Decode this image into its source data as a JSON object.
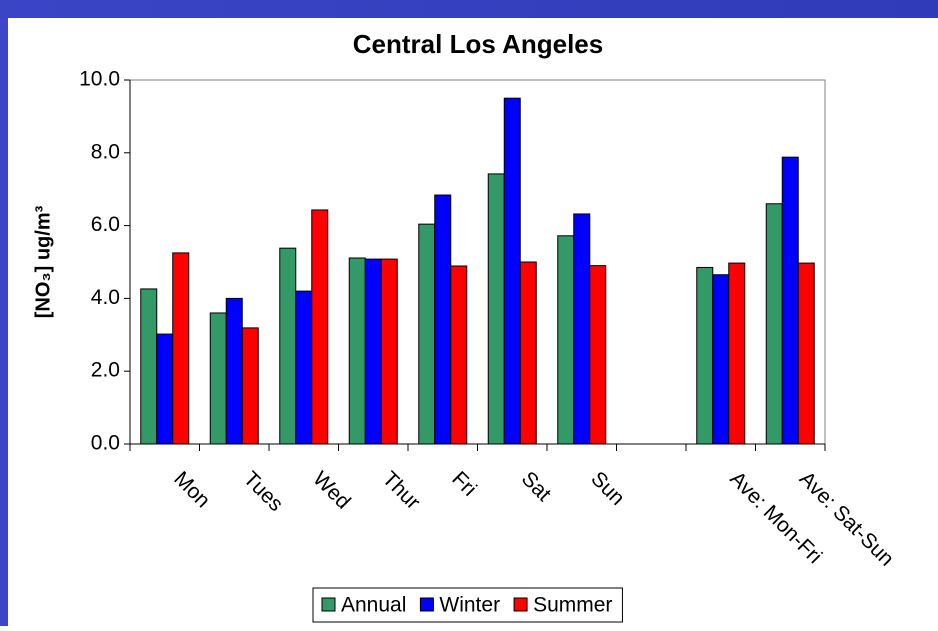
{
  "chart_data": {
    "type": "bar",
    "title": "Central Los Angeles",
    "ylabel": "[NO₃] ug/m³",
    "categories": [
      "Mon",
      "Tues",
      "Wed",
      "Thur",
      "Fri",
      "Sat",
      "Sun",
      null,
      "Ave: Mon-Fri",
      "Ave: Sat-Sun"
    ],
    "series": [
      {
        "name": "Annual",
        "color": "#339966",
        "values": [
          4.26,
          3.6,
          5.38,
          5.11,
          6.04,
          7.42,
          5.72,
          null,
          4.85,
          6.6
        ]
      },
      {
        "name": "Winter",
        "color": "#0000ff",
        "values": [
          3.02,
          4.0,
          4.2,
          5.08,
          6.84,
          9.5,
          6.32,
          null,
          4.65,
          7.88
        ]
      },
      {
        "name": "Summer",
        "color": "#ff0000",
        "values": [
          5.25,
          3.19,
          6.43,
          5.08,
          4.89,
          5.0,
          4.9,
          null,
          4.97,
          4.97
        ]
      }
    ],
    "ylim": [
      0,
      10
    ],
    "yticks": [
      {
        "value": 0,
        "label": "0.0"
      },
      {
        "value": 2,
        "label": "2.0"
      },
      {
        "value": 4,
        "label": "4.0"
      },
      {
        "value": 6,
        "label": "6.0"
      },
      {
        "value": 8,
        "label": "8.0"
      },
      {
        "value": 10,
        "label": "10.0"
      }
    ],
    "legend": "bottom"
  }
}
